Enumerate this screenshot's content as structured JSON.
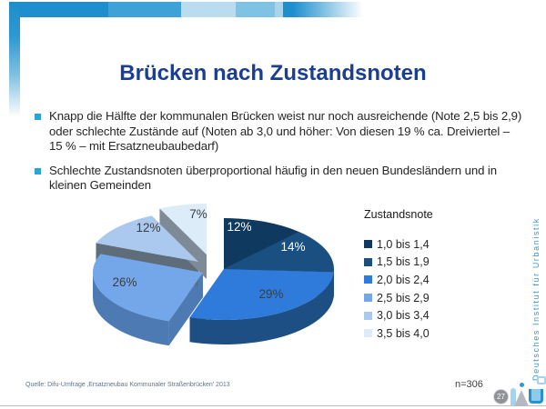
{
  "slide": {
    "title": "Brücken nach Zustandsnoten"
  },
  "bullets": [
    "Knapp die Hälfte der kommunalen Brücken weist nur noch ausreichende (Note 2,5 bis 2,9) oder schlechte Zustände auf (Noten ab 3,0 und höher: Von diesen 19 % ca. Dreiviertel – 15 % – mit Ersatzneubaubedarf)",
    "Schlechte Zustandsnoten überproportional häufig in den neuen Bundesländern und in kleinen Gemeinden"
  ],
  "chart_data": {
    "type": "pie",
    "style": "3d-exploded",
    "legend_title": "Zustandsnote",
    "legend_position": "right",
    "sample_size_label": "n=306",
    "slices": [
      {
        "range": "1,0 bis 1,4",
        "value": 12,
        "label": "12%",
        "color": "#10395f",
        "side_color": "#0a2845",
        "label_color": "#ffffff",
        "explode": [
          13,
          1
        ],
        "label_pos": [
          208,
          29
        ]
      },
      {
        "range": "1,5 bis 1,9",
        "value": 14,
        "label": "14%",
        "color": "#1a4f82",
        "side_color": "#11395f",
        "label_color": "#ffffff",
        "explode": [
          13,
          1
        ],
        "label_pos": [
          267,
          51
        ]
      },
      {
        "range": "2,0 bis 2,4",
        "value": 29,
        "label": "29%",
        "color": "#2e7bdb",
        "side_color": "#1d4f84",
        "label_color": "#3d3d3d",
        "explode": [
          13,
          1
        ],
        "label_pos": [
          243,
          103
        ]
      },
      {
        "range": "2,5 bis 2,9",
        "value": 26,
        "label": "26%",
        "color": "#74a7ea",
        "side_color": "#4d7ab2",
        "label_color": "#3d3d3d",
        "explode": [
          -10,
          5
        ],
        "label_pos": [
          82,
          90
        ]
      },
      {
        "range": "3,0 bis 3,4",
        "value": 12,
        "label": "12%",
        "color": "#abc9ee",
        "side_color": "#5f6c79",
        "label_color": "#3d3d3d",
        "explode": [
          -15,
          -7
        ],
        "label_pos": [
          108,
          30
        ]
      },
      {
        "range": "3,5 bis 4,0",
        "value": 7,
        "label": "7%",
        "color": "#dcecf8",
        "side_color": "#7e8a95",
        "label_color": "#3d3d3d",
        "explode": [
          -6,
          -15
        ],
        "label_pos": [
          163,
          15
        ]
      }
    ]
  },
  "footer": {
    "source": "Quelle: Difu-Umfrage ‚Ersatzneubau Kommunaler Straßenbrücken’ 2013",
    "page_number": "27"
  },
  "branding": {
    "institute": "Deutsches Institut für Urbanistik"
  }
}
